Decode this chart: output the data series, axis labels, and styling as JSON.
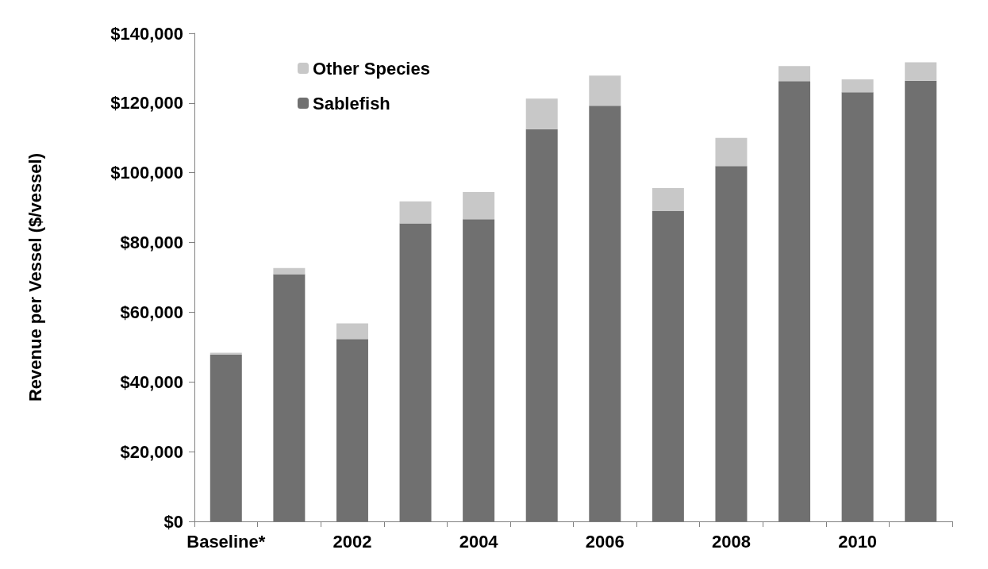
{
  "chart_data": {
    "type": "bar",
    "stacked": true,
    "ylabel": "Revenue per Vessel ($/vessel)",
    "categories": [
      "Baseline*",
      null,
      "2002",
      null,
      "2004",
      null,
      "2006",
      null,
      "2008",
      null,
      "2010",
      null
    ],
    "series": [
      {
        "name": "Sablefish",
        "color": "#707070",
        "values": [
          47800,
          70900,
          52300,
          85500,
          86700,
          112500,
          119200,
          89000,
          101900,
          126300,
          123100,
          126400
        ]
      },
      {
        "name": "Other Species",
        "color": "#c8c8c8",
        "values": [
          600,
          1800,
          4500,
          6300,
          7800,
          8800,
          8700,
          6600,
          8100,
          4300,
          3700,
          5300
        ]
      }
    ],
    "ylim": [
      0,
      140000
    ],
    "yticks": [
      {
        "value": 0,
        "label": "$0"
      },
      {
        "value": 20000,
        "label": "$20,000"
      },
      {
        "value": 40000,
        "label": "$40,000"
      },
      {
        "value": 60000,
        "label": "$60,000"
      },
      {
        "value": 80000,
        "label": "$80,000"
      },
      {
        "value": 100000,
        "label": "$100,000"
      },
      {
        "value": 120000,
        "label": "$120,000"
      },
      {
        "value": 140000,
        "label": "$140,000"
      }
    ],
    "grid": false,
    "legend": "top left"
  }
}
